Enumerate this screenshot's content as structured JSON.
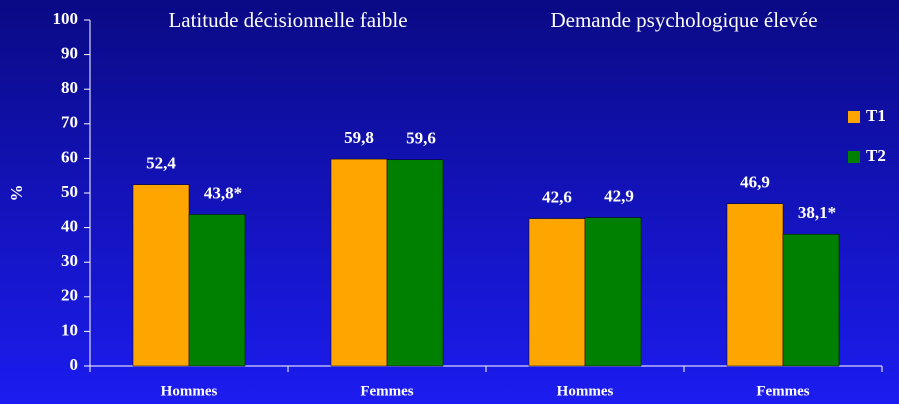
{
  "chart_data": {
    "type": "bar",
    "annotations": [
      "Latitude décisionnelle faible",
      "Demande psychologique élevée"
    ],
    "y_label": "%",
    "categories": [
      "Hommes",
      "Femmes",
      "Hommes",
      "Femmes"
    ],
    "series": [
      {
        "name": "T1",
        "color": "#ffa500",
        "values": [
          52.4,
          59.8,
          42.6,
          46.9
        ],
        "value_labels": [
          "52,4",
          "59,8",
          "42,6",
          "46,9"
        ]
      },
      {
        "name": "T2",
        "color": "#008000",
        "values": [
          43.8,
          59.6,
          42.9,
          38.1
        ],
        "value_labels": [
          "43,8*",
          "59,6",
          "42,9",
          "38,1*"
        ]
      }
    ],
    "ylim": [
      0,
      100
    ],
    "yticks": [
      0,
      10,
      20,
      30,
      40,
      50,
      60,
      70,
      80,
      90,
      100
    ],
    "legend": "right"
  }
}
